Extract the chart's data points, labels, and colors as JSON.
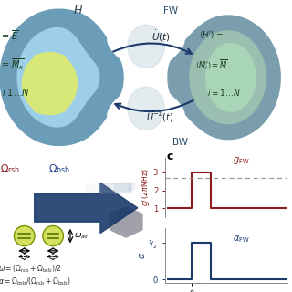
{
  "bg_color": "#ffffff",
  "left_outer_color": "#6b9db8",
  "left_inner_color": "#9dd0e8",
  "left_yellow_color": "#d8e878",
  "right_outer_color": "#7a9eae",
  "right_inner_color": "#9abfb0",
  "right_innermost_color": "#a8d4b8",
  "middle_white_color": "#ffffff",
  "arrow_color": "#1a3a6a",
  "g_line_color": "#8b1a1a",
  "alpha_line_color": "#1a3a6a",
  "dashed_color": "#999999",
  "ion_fill": "#d4e060",
  "ion_edge": "#7a9200",
  "ion_line": "#4a6a00",
  "hex_color": "#a0a0a8",
  "arrow_body_color": "#1a3a6a",
  "arrow_highlight": "#6a8ab8"
}
